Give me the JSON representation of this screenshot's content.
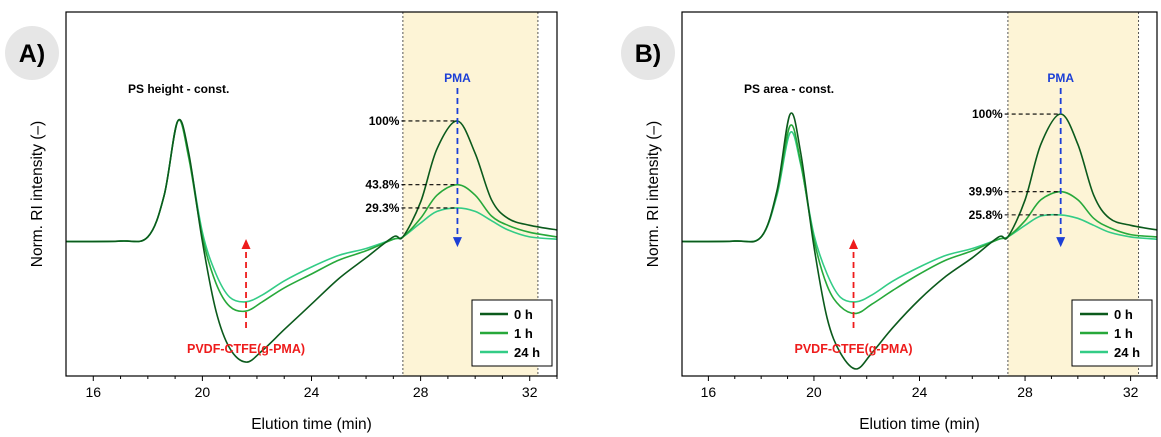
{
  "figure": {
    "colors": {
      "shade": "#fdf4d6",
      "axis": "#000000",
      "badge": "#e6e6e6",
      "pvdf_label": "#ee1c1c",
      "pma_label": "#1c3fd6",
      "s0": "#0b5a1c",
      "s1": "#27a83a",
      "s24": "#33cc86"
    }
  },
  "chart_data": [
    {
      "type": "line",
      "panel_label": "A)",
      "title": "PS height - const.",
      "xlabel": "Elution time (min)",
      "ylabel": "Norm. RI intensity (–)",
      "xlim": [
        15,
        33
      ],
      "ylim": [
        -0.58,
        0.99
      ],
      "xticks": [
        16,
        20,
        24,
        28,
        32
      ],
      "shaded_region": [
        27.35,
        32.3
      ],
      "legend": {
        "placement": "bottom-right",
        "entries": [
          "0 h",
          "1 h",
          "24 h"
        ]
      },
      "pma_label": "PMA",
      "pvdf_label": "PVDF-CTFE(g-PMA)",
      "pma_x": 29.35,
      "pvdf_x": 21.6,
      "annotations": [
        {
          "text": "100%",
          "y": 0.52
        },
        {
          "text": "43.8%",
          "y": 0.245
        },
        {
          "text": "29.3%",
          "y": 0.145
        }
      ],
      "series": [
        {
          "name": "0 h",
          "x": [
            15,
            17,
            18,
            18.6,
            19.1,
            19.5,
            20,
            20.5,
            21,
            21.6,
            22.2,
            23,
            24,
            25,
            26,
            27,
            27.35,
            28,
            28.6,
            29.35,
            30,
            30.6,
            31.2,
            32,
            33
          ],
          "y": [
            0,
            0.002,
            0.02,
            0.2,
            0.52,
            0.38,
            0,
            -0.3,
            -0.46,
            -0.52,
            -0.47,
            -0.38,
            -0.27,
            -0.16,
            -0.07,
            0.02,
            0.02,
            0.17,
            0.4,
            0.52,
            0.38,
            0.18,
            0.1,
            0.07,
            0.05
          ]
        },
        {
          "name": "1 h",
          "x": [
            15,
            17,
            18,
            18.6,
            19.1,
            19.5,
            20,
            20.5,
            21,
            21.6,
            22.2,
            23,
            24,
            25,
            26,
            27,
            27.35,
            28,
            28.6,
            29.35,
            30,
            30.6,
            31.2,
            32,
            33
          ],
          "y": [
            0,
            0.002,
            0.02,
            0.2,
            0.52,
            0.36,
            0.02,
            -0.18,
            -0.28,
            -0.3,
            -0.26,
            -0.2,
            -0.14,
            -0.08,
            -0.04,
            0.01,
            0.02,
            0.1,
            0.2,
            0.245,
            0.2,
            0.11,
            0.07,
            0.04,
            0.02
          ]
        },
        {
          "name": "24 h",
          "x": [
            15,
            17,
            18,
            18.6,
            19.1,
            19.5,
            20,
            20.5,
            21,
            21.6,
            22.2,
            23,
            24,
            25,
            26,
            27,
            27.35,
            28,
            28.6,
            29.35,
            30,
            30.6,
            31.2,
            32,
            33
          ],
          "y": [
            0,
            0.002,
            0.02,
            0.2,
            0.52,
            0.37,
            0.04,
            -0.14,
            -0.24,
            -0.26,
            -0.23,
            -0.17,
            -0.11,
            -0.06,
            -0.03,
            0.01,
            0.02,
            0.08,
            0.13,
            0.145,
            0.13,
            0.09,
            0.05,
            0.02,
            0.01
          ]
        }
      ]
    },
    {
      "type": "line",
      "panel_label": "B)",
      "title": "PS area - const.",
      "xlabel": "Elution time (min)",
      "ylabel": "Norm. RI intensity (–)",
      "xlim": [
        15,
        33
      ],
      "ylim": [
        -0.58,
        0.99
      ],
      "xticks": [
        16,
        20,
        24,
        28,
        32
      ],
      "shaded_region": [
        27.35,
        32.3
      ],
      "legend": {
        "placement": "bottom-right",
        "entries": [
          "0 h",
          "1 h",
          "24 h"
        ]
      },
      "pma_label": "PMA",
      "pvdf_label": "PVDF-CTFE(g-PMA)",
      "pma_x": 29.35,
      "pvdf_x": 21.5,
      "annotations": [
        {
          "text": "100%",
          "y": 0.55
        },
        {
          "text": "39.9%",
          "y": 0.215
        },
        {
          "text": "25.8%",
          "y": 0.115
        }
      ],
      "series": [
        {
          "name": "0 h",
          "x": [
            15,
            17,
            18,
            18.6,
            19.1,
            19.5,
            20,
            20.5,
            21,
            21.6,
            22.2,
            23,
            24,
            25,
            26,
            27,
            27.35,
            28,
            28.6,
            29.35,
            30,
            30.6,
            31.2,
            32,
            33
          ],
          "y": [
            0,
            0.002,
            0.02,
            0.22,
            0.55,
            0.38,
            -0.02,
            -0.33,
            -0.48,
            -0.55,
            -0.48,
            -0.37,
            -0.25,
            -0.15,
            -0.07,
            0.02,
            0.02,
            0.18,
            0.42,
            0.55,
            0.42,
            0.2,
            0.1,
            0.07,
            0.05
          ]
        },
        {
          "name": "1 h",
          "x": [
            15,
            17,
            18,
            18.6,
            19.1,
            19.5,
            20,
            20.5,
            21,
            21.6,
            22.2,
            23,
            24,
            25,
            26,
            27,
            27.35,
            28,
            28.6,
            29.35,
            30,
            30.6,
            31.2,
            32,
            33
          ],
          "y": [
            0,
            0.002,
            0.02,
            0.21,
            0.5,
            0.34,
            0.01,
            -0.19,
            -0.28,
            -0.31,
            -0.27,
            -0.21,
            -0.14,
            -0.08,
            -0.04,
            0.01,
            0.02,
            0.09,
            0.18,
            0.215,
            0.18,
            0.1,
            0.06,
            0.03,
            0.02
          ]
        },
        {
          "name": "24 h",
          "x": [
            15,
            17,
            18,
            18.6,
            19.1,
            19.5,
            20,
            20.5,
            21,
            21.6,
            22.2,
            23,
            24,
            25,
            26,
            27,
            27.35,
            28,
            28.6,
            29.35,
            30,
            30.6,
            31.2,
            32,
            33
          ],
          "y": [
            0,
            0.002,
            0.02,
            0.2,
            0.47,
            0.33,
            0.03,
            -0.14,
            -0.24,
            -0.26,
            -0.23,
            -0.17,
            -0.11,
            -0.06,
            -0.03,
            0.01,
            0.02,
            0.07,
            0.11,
            0.115,
            0.1,
            0.07,
            0.04,
            0.02,
            0.01
          ]
        }
      ]
    }
  ]
}
